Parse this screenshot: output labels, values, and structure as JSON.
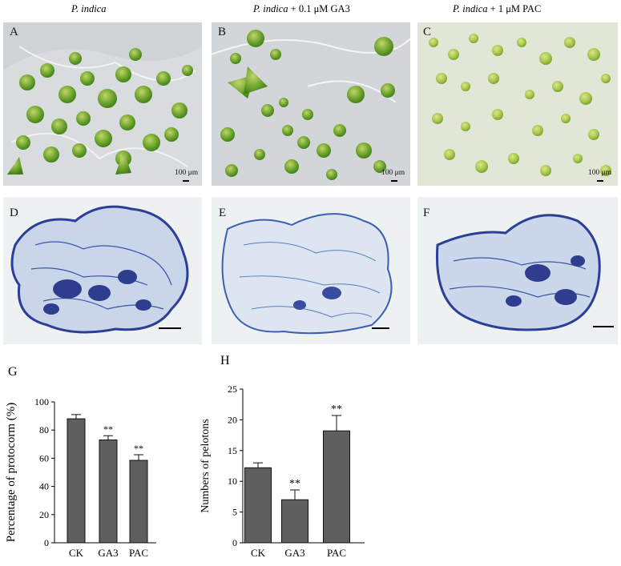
{
  "columns": [
    {
      "species": "P. indica",
      "treatment": ""
    },
    {
      "species": "P. indica",
      "treatment": " + 0.1 μM GA3"
    },
    {
      "species": "P. indica",
      "treatment": " + 1 μM PAC"
    }
  ],
  "panels": {
    "photo_letters": [
      "A",
      "B",
      "C"
    ],
    "section_letters": [
      "D",
      "E",
      "F"
    ],
    "scale_bar_text": "100 μm"
  },
  "charts": {
    "g": {
      "letter": "G"
    },
    "h": {
      "letter": "H"
    }
  },
  "chart_data": [
    {
      "type": "bar",
      "panel": "G",
      "categories": [
        "CK",
        "GA3",
        "PAC"
      ],
      "values": [
        88,
        73,
        58.5
      ],
      "errors": [
        3,
        3,
        4
      ],
      "significance": [
        "",
        "**",
        "**"
      ],
      "title": "",
      "xlabel": "",
      "ylabel": "Percentage of protocorm (%)",
      "ylim": [
        0,
        100
      ],
      "yticks": [
        0,
        20,
        40,
        60,
        80,
        100
      ],
      "bar_color": "#5f5f5f",
      "grid": false
    },
    {
      "type": "bar",
      "panel": "H",
      "categories": [
        "CK",
        "GA3",
        "PAC"
      ],
      "values": [
        12.2,
        7,
        18.2
      ],
      "errors": [
        0.8,
        1.6,
        2.5
      ],
      "significance": [
        "",
        "**",
        "**"
      ],
      "title": "",
      "xlabel": "",
      "ylabel": "Numbers of pelotons",
      "ylim": [
        0,
        25
      ],
      "yticks": [
        0,
        5,
        10,
        15,
        20,
        25
      ],
      "bar_color": "#5f5f5f",
      "grid": false
    }
  ]
}
